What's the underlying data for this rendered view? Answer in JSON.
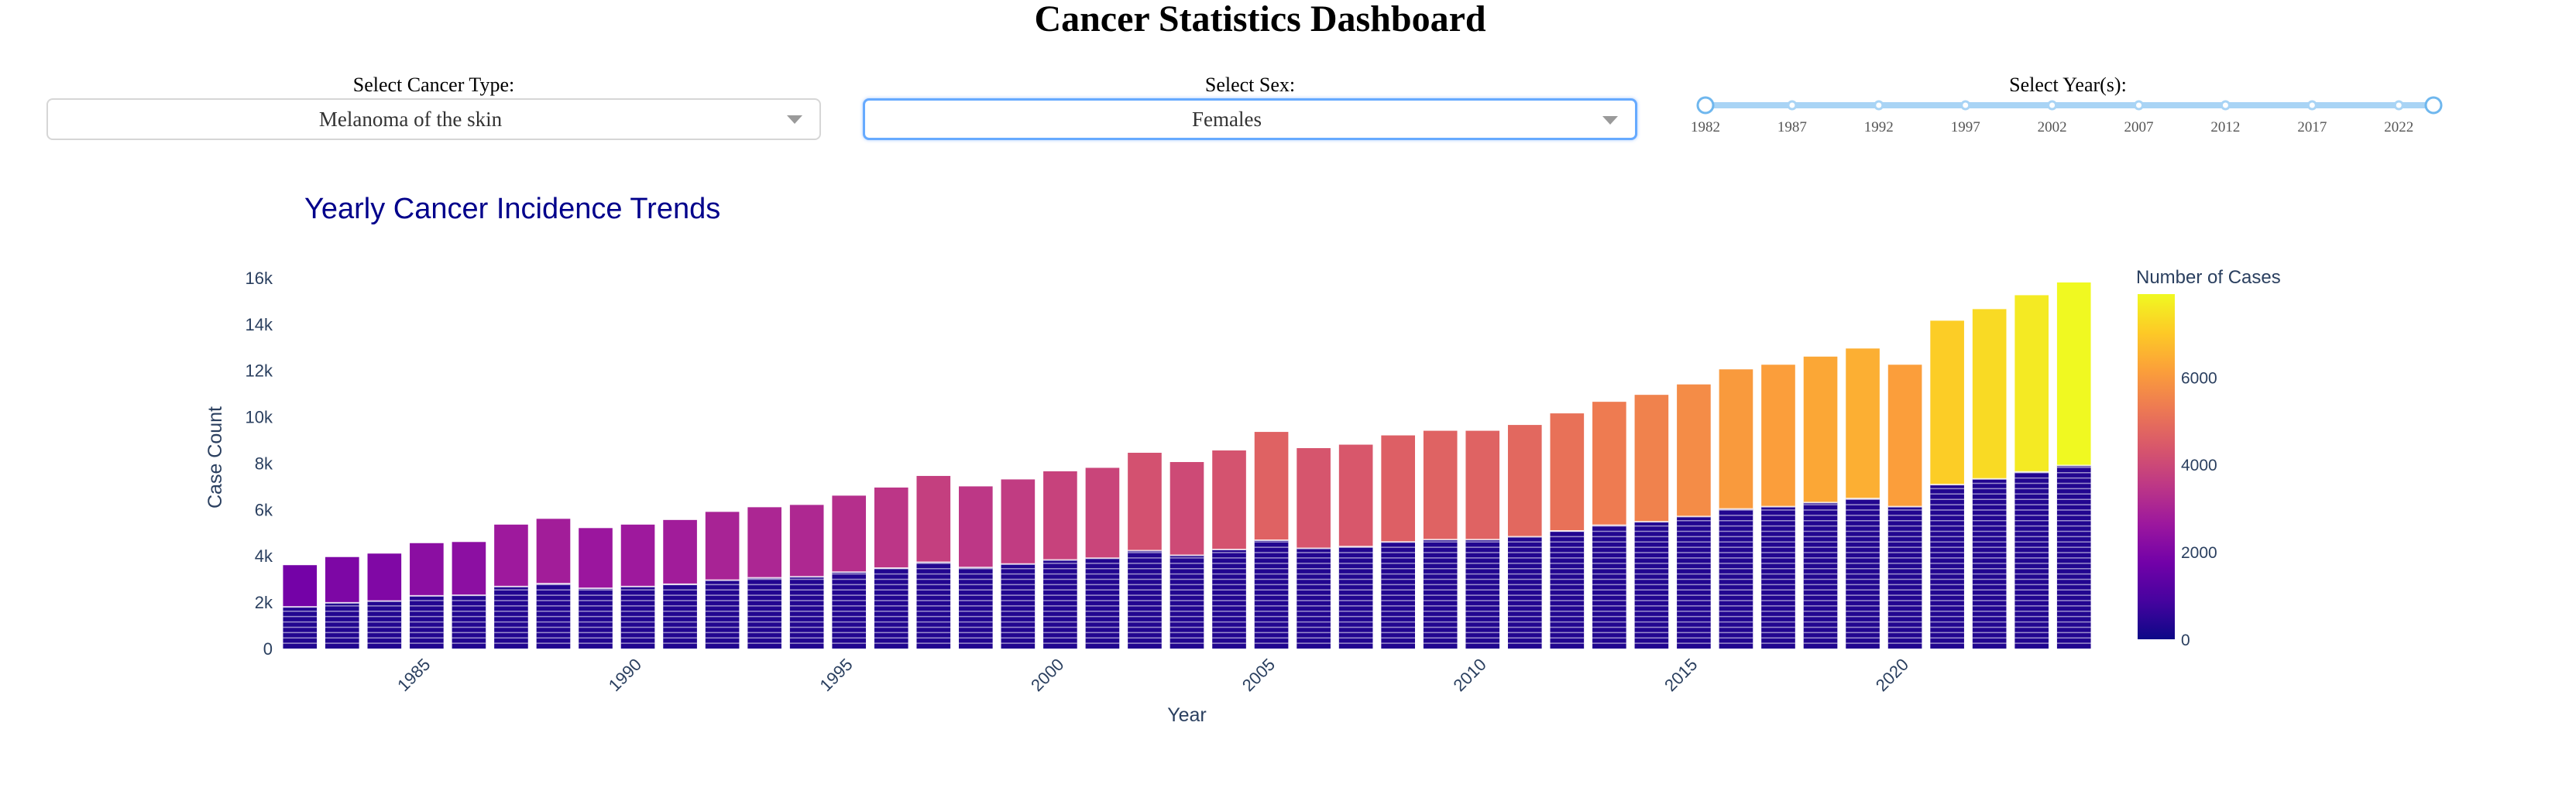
{
  "header": {
    "title": "Cancer Statistics Dashboard"
  },
  "controls": {
    "cancer_type": {
      "label": "Select Cancer Type:",
      "value": "Melanoma of the skin"
    },
    "sex": {
      "label": "Select Sex:",
      "value": "Females"
    },
    "years": {
      "label": "Select Year(s):",
      "marks": [
        "1982",
        "1987",
        "1992",
        "1997",
        "2002",
        "2007",
        "2012",
        "2017",
        "2022"
      ],
      "range": [
        1982,
        2024
      ]
    }
  },
  "colors": {
    "slider_track": "#a9d4f5",
    "slider_handle": "#6fb7ee",
    "title_color": "#00008b",
    "axis_text": "#2a3f5f",
    "dropdown_focus": "#66aaff"
  },
  "chart_data": {
    "type": "bar",
    "title": "Yearly Cancer Incidence Trends",
    "xlabel": "Year",
    "ylabel": "Case Count",
    "x": [
      1982,
      1983,
      1984,
      1985,
      1986,
      1987,
      1988,
      1989,
      1990,
      1991,
      1992,
      1993,
      1994,
      1995,
      1996,
      1997,
      1998,
      1999,
      2000,
      2001,
      2002,
      2003,
      2004,
      2005,
      2006,
      2007,
      2008,
      2009,
      2010,
      2011,
      2012,
      2013,
      2014,
      2015,
      2016,
      2017,
      2018,
      2019,
      2020,
      2021,
      2022,
      2023,
      2024
    ],
    "x_ticks": [
      1985,
      1990,
      1995,
      2000,
      2005,
      2010,
      2015,
      2020
    ],
    "values": [
      3600,
      3950,
      4100,
      4550,
      4600,
      5350,
      5600,
      5200,
      5350,
      5550,
      5900,
      6100,
      6200,
      6600,
      6950,
      7450,
      7000,
      7300,
      7650,
      7800,
      8450,
      8050,
      8550,
      9350,
      8650,
      8800,
      9200,
      9400,
      9400,
      9650,
      10150,
      10650,
      10950,
      11400,
      12050,
      12250,
      12600,
      12950,
      12250,
      14150,
      14650,
      15250,
      15800
    ],
    "ylim": [
      0,
      16500
    ],
    "y_ticks": [
      0,
      2000,
      4000,
      6000,
      8000,
      10000,
      12000,
      14000,
      16000
    ],
    "y_tick_labels": [
      "0",
      "2k",
      "4k",
      "6k",
      "8k",
      "10k",
      "12k",
      "14k",
      "16k"
    ],
    "colorbar": {
      "title": "Number of Cases",
      "ticks": [
        0,
        2000,
        4000,
        6000
      ],
      "range": [
        0,
        7900
      ]
    },
    "grid": false
  }
}
